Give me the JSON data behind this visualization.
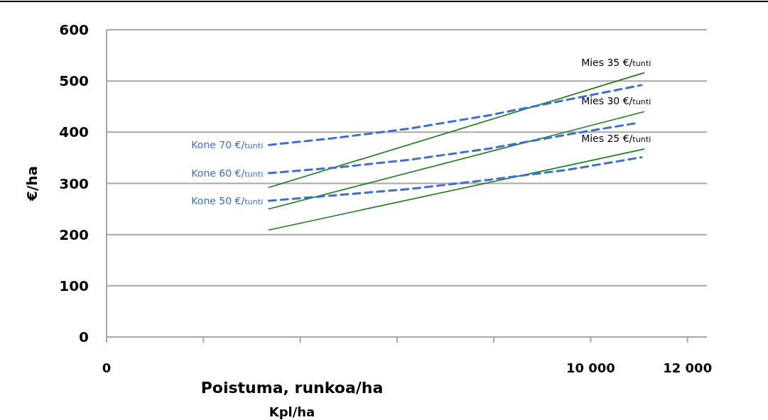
{
  "chart_data": {
    "type": "line",
    "xlabel": "Poistuma, runkoa/ha",
    "ylabel": "€/ha",
    "annotations": [
      "Kpl/ha"
    ],
    "xlim": [
      0,
      12400
    ],
    "xticks": [
      0,
      {
        "value": 2000,
        "label": null
      },
      {
        "value": 4000,
        "label": null
      },
      {
        "value": 6000,
        "label": null
      },
      {
        "value": 8000,
        "label": null
      },
      {
        "value": 10000,
        "label": "10 000"
      },
      {
        "value": 12000,
        "label": "12 000"
      }
    ],
    "ylim": [
      0,
      600
    ],
    "yticks": [
      0,
      100,
      200,
      300,
      400,
      500,
      600
    ],
    "grid": "y",
    "marker": "none",
    "series": [
      {
        "name": "Mies 35 €/$_{tunti}$",
        "color": "#1e7b1e",
        "line_style": "solid",
        "x": [
          3350,
          11100
        ],
        "values": [
          292,
          516
        ]
      },
      {
        "name": "Mies 30 €/$_{tunti}$",
        "color": "#1e7b1e",
        "line_style": "solid",
        "x": [
          3350,
          11100
        ],
        "values": [
          250,
          440
        ]
      },
      {
        "name": "Mies 25 €/$_{tunti}$",
        "color": "#1e7b1e",
        "line_style": "solid",
        "x": [
          3350,
          11100
        ],
        "values": [
          209,
          367
        ]
      },
      {
        "name": "Kone 70 €/$_{tunti}$",
        "color": "#3b6fd0",
        "line_style": "dashed",
        "x": [
          3350,
          4750,
          6250,
          7900,
          9550,
          11050
        ],
        "values": [
          375,
          389,
          407,
          433,
          464,
          492
        ]
      },
      {
        "name": "Kone 60 €/$_{tunti}$",
        "color": "#3b6fd0",
        "line_style": "dashed",
        "x": [
          3350,
          4750,
          6250,
          7900,
          9550,
          10900
        ],
        "values": [
          320,
          331,
          346,
          368,
          396,
          417
        ]
      },
      {
        "name": "Kone 50 €/$_{tunti}$",
        "color": "#3b6fd0",
        "line_style": "dashed",
        "x": [
          3350,
          4750,
          6250,
          7900,
          9550,
          11050
        ],
        "values": [
          266,
          277,
          289,
          307,
          327,
          351
        ]
      }
    ]
  }
}
